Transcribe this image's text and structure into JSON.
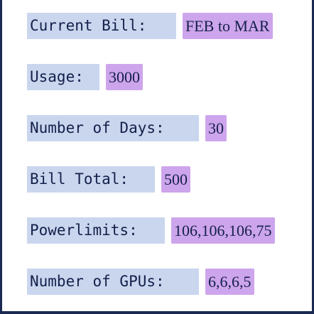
{
  "fields": [
    {
      "label": "Current Bill:",
      "value": "FEB to MAR"
    },
    {
      "label": "Usage:",
      "value": "3000"
    },
    {
      "label": "Number of Days:",
      "value": "30"
    },
    {
      "label": "Bill Total:",
      "value": "500"
    },
    {
      "label": "Powerlimits:",
      "value": "106,106,106,75"
    },
    {
      "label": "Number of GPUs:",
      "value": "6,6,6,5"
    }
  ],
  "colors": {
    "label_bg": "#c9d6ee",
    "value_bg": "#cda5ec",
    "text": "#14204a",
    "frame": "#1a2a52"
  }
}
